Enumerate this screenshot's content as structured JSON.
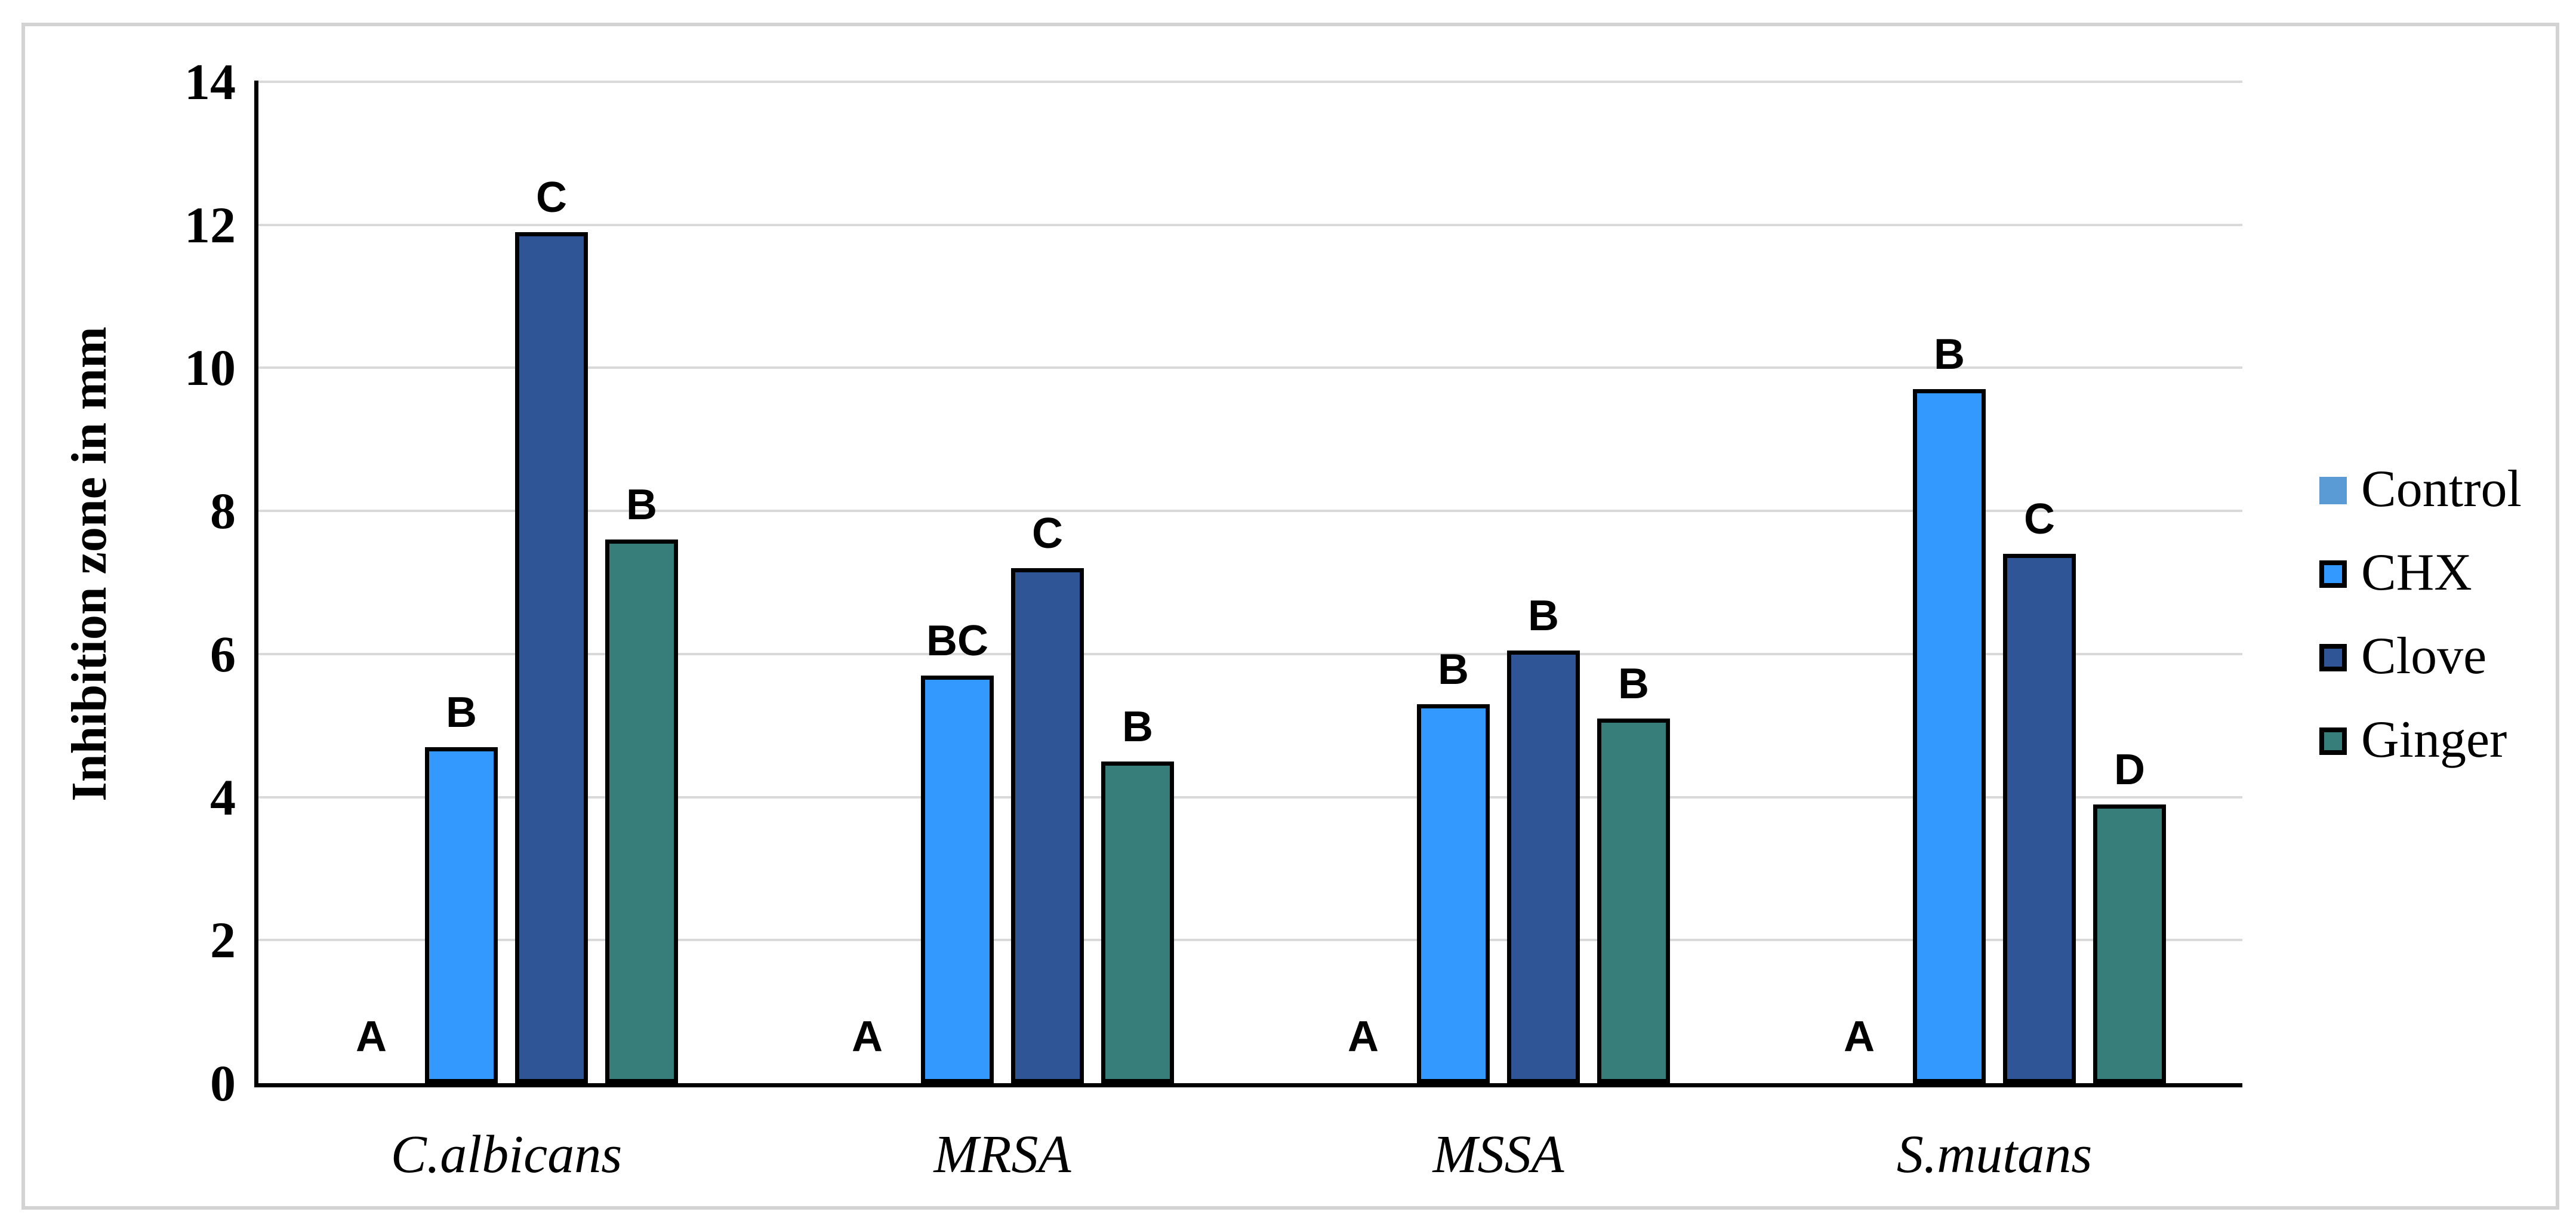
{
  "chart_data": {
    "type": "bar",
    "title": "",
    "ylabel": "Inhibition zone in mm",
    "xlabel": "",
    "ylim": [
      0,
      14
    ],
    "yticks": [
      0,
      2,
      4,
      6,
      8,
      10,
      12,
      14
    ],
    "grid": true,
    "legend_position": "right",
    "categories": [
      "C.albicans",
      "MRSA",
      "MSSA",
      "S.mutans"
    ],
    "series": [
      {
        "name": "Control",
        "color": "#5B9BD5",
        "outlined": false,
        "values": [
          0,
          0,
          0,
          0
        ],
        "sig_labels": [
          "A",
          "A",
          "A",
          "A"
        ]
      },
      {
        "name": "CHX",
        "color": "#3399FF",
        "outlined": true,
        "values": [
          4.7,
          5.7,
          5.3,
          9.7
        ],
        "sig_labels": [
          "B",
          "BC",
          "B",
          "B"
        ]
      },
      {
        "name": "Clove",
        "color": "#2F5597",
        "outlined": true,
        "values": [
          11.9,
          7.2,
          6.05,
          7.4
        ],
        "sig_labels": [
          "C",
          "C",
          "B",
          "C"
        ]
      },
      {
        "name": "Ginger",
        "color": "#377E7B",
        "outlined": true,
        "values": [
          7.6,
          4.5,
          5.1,
          3.9
        ],
        "sig_labels": [
          "B",
          "B",
          "B",
          "D"
        ]
      }
    ],
    "colors": {
      "gridline": "#D9D9D9",
      "axis": "#000000",
      "bar_outline": "#000000",
      "frame_border": "#D3D3D3",
      "background": "#FFFFFF"
    }
  }
}
